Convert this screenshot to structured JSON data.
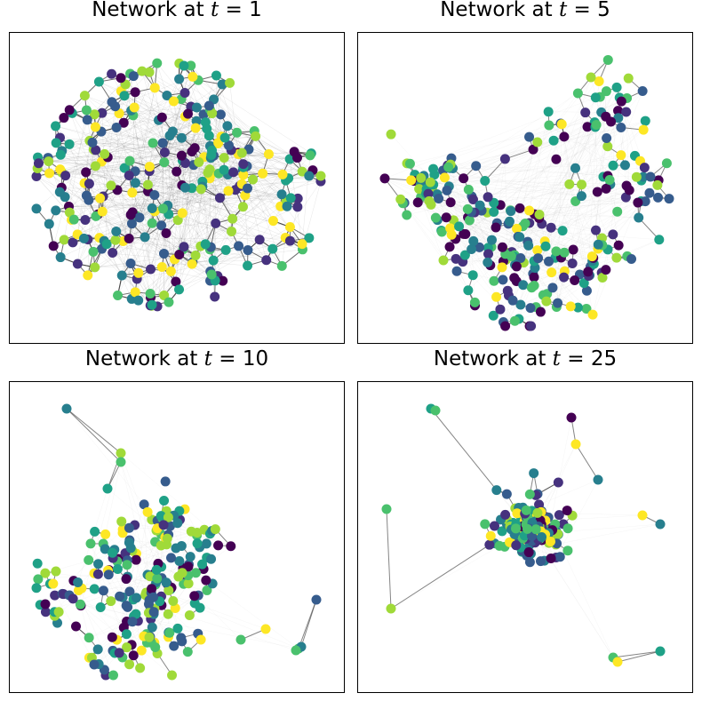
{
  "figure": {
    "panels": [
      {
        "id": "p1",
        "title_prefix": "Network at ",
        "var": "t",
        "title_suffix": " = 1",
        "seed": 11,
        "n": 300,
        "style": "dense"
      },
      {
        "id": "p2",
        "title_prefix": "Network at ",
        "var": "t",
        "title_suffix": " = 5",
        "seed": 23,
        "n": 280,
        "style": "ring"
      },
      {
        "id": "p3",
        "title_prefix": "Network at ",
        "var": "t",
        "title_suffix": " = 10",
        "seed": 37,
        "n": 230,
        "style": "tree"
      },
      {
        "id": "p4",
        "title_prefix": "Network at ",
        "var": "t",
        "title_suffix": " = 25",
        "seed": 53,
        "n": 200,
        "style": "core"
      }
    ],
    "colormap": [
      "#440154",
      "#46327e",
      "#365c8d",
      "#277f8e",
      "#1fa187",
      "#4ac16d",
      "#a0da39",
      "#fde725"
    ],
    "edge_color": "#333333"
  }
}
